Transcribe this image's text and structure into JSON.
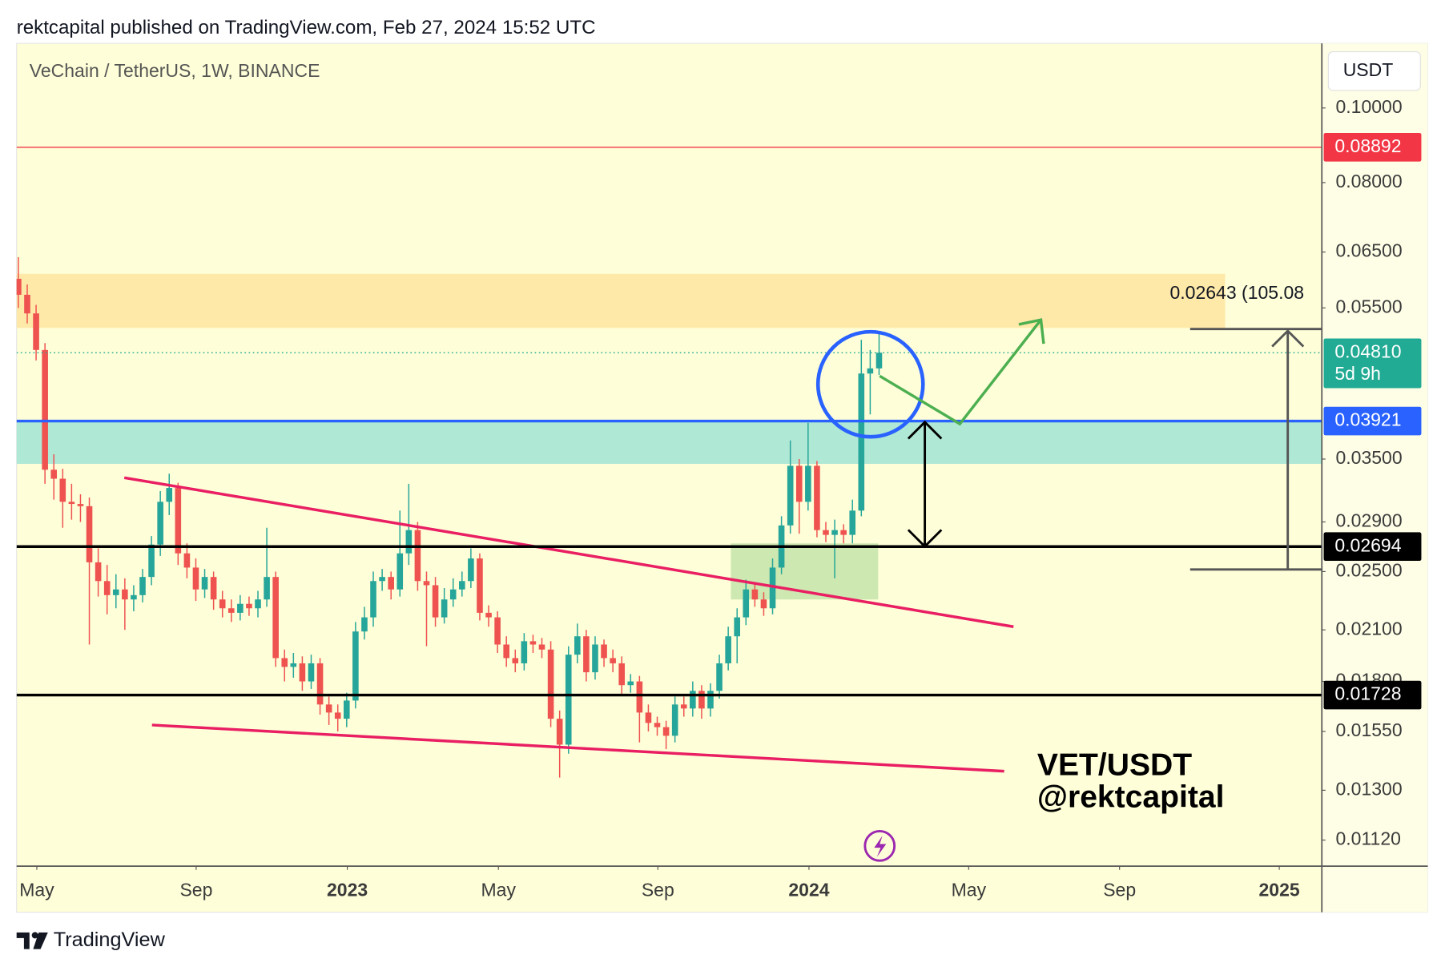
{
  "header": "rektcapital published on TradingView.com, Feb 27, 2024 15:52 UTC",
  "chart_data": {
    "type": "candlestick",
    "title": "VeChain / TetherUS, 1W, BINANCE",
    "currency": "USDT",
    "log_scale": true,
    "ylim": [
      0.01036,
      0.1213
    ],
    "yticks": [
      {
        "value": 0.1,
        "label": "0.10000"
      },
      {
        "value": 0.08,
        "label": "0.08000"
      },
      {
        "value": 0.065,
        "label": "0.06500"
      },
      {
        "value": 0.055,
        "label": "0.05500"
      },
      {
        "value": 0.035,
        "label": "0.03500"
      },
      {
        "value": 0.029,
        "label": "0.02900"
      },
      {
        "value": 0.025,
        "label": "0.02500"
      },
      {
        "value": 0.021,
        "label": "0.02100"
      },
      {
        "value": 0.018,
        "label": "0.01800"
      },
      {
        "value": 0.0155,
        "label": "0.01550"
      },
      {
        "value": 0.013,
        "label": "0.01300"
      },
      {
        "value": 0.0112,
        "label": "0.01120"
      }
    ],
    "xlim": [
      -0.2,
      146.9
    ],
    "xticks": [
      {
        "value": 2.08,
        "label": "May"
      },
      {
        "value": 20.04,
        "label": "Sep"
      },
      {
        "value": 37.07,
        "label": "2023"
      },
      {
        "value": 54.1,
        "label": "May"
      },
      {
        "value": 72.07,
        "label": "Sep"
      },
      {
        "value": 89.1,
        "label": "2024"
      },
      {
        "value": 107.1,
        "label": "May"
      },
      {
        "value": 124.1,
        "label": "Sep"
      },
      {
        "value": 142.1,
        "label": "2025"
      }
    ],
    "up_color": "#26a69a",
    "down_color": "#ef5350",
    "open": [
      0.06,
      0.0572,
      0.0541,
      0.0485,
      0.0339,
      0.033,
      0.0308,
      0.0306,
      0.0304,
      0.0257,
      0.0243,
      0.0233,
      0.0237,
      0.023,
      0.0233,
      0.0246,
      0.0271,
      0.0308,
      0.0321,
      0.0264,
      0.0253,
      0.0237,
      0.0246,
      0.023,
      0.0224,
      0.0221,
      0.0227,
      0.0224,
      0.023,
      0.0246,
      0.0193,
      0.0188,
      0.019,
      0.018,
      0.019,
      0.0168,
      0.0164,
      0.0161,
      0.017,
      0.0209,
      0.0218,
      0.0243,
      0.0246,
      0.0237,
      0.0264,
      0.0283,
      0.0243,
      0.024,
      0.0218,
      0.023,
      0.0237,
      0.0243,
      0.026,
      0.0221,
      0.0218,
      0.0201,
      0.0193,
      0.019,
      0.0203,
      0.0201,
      0.0198,
      0.0161,
      0.0149,
      0.0195,
      0.0206,
      0.0185,
      0.0201,
      0.0193,
      0.019,
      0.0178,
      0.018,
      0.0164,
      0.0159,
      0.0157,
      0.0153,
      0.0168,
      0.0166,
      0.0175,
      0.0166,
      0.0175,
      0.019,
      0.0206,
      0.0218,
      0.0237,
      0.023,
      0.0224,
      0.0253,
      0.0287,
      0.0343,
      0.0308,
      0.0343,
      0.0283,
      0.0279,
      0.0283,
      0.0279,
      0.03,
      0.0452,
      0.0459
    ],
    "high": [
      0.064,
      0.059,
      0.0555,
      0.0495,
      0.0355,
      0.034,
      0.0325,
      0.0315,
      0.0312,
      0.0268,
      0.0255,
      0.0248,
      0.0245,
      0.024,
      0.0252,
      0.0278,
      0.0318,
      0.0335,
      0.0326,
      0.0272,
      0.026,
      0.0252,
      0.025,
      0.0236,
      0.023,
      0.0233,
      0.0232,
      0.0236,
      0.0285,
      0.025,
      0.0198,
      0.0196,
      0.0194,
      0.0195,
      0.0193,
      0.0172,
      0.0168,
      0.0174,
      0.0215,
      0.0225,
      0.025,
      0.0252,
      0.025,
      0.03,
      0.0325,
      0.029,
      0.025,
      0.0246,
      0.0238,
      0.0245,
      0.025,
      0.0268,
      0.0264,
      0.0226,
      0.0222,
      0.0206,
      0.0198,
      0.0208,
      0.0207,
      0.0205,
      0.0203,
      0.0165,
      0.02,
      0.0214,
      0.021,
      0.0206,
      0.0204,
      0.0198,
      0.0194,
      0.0184,
      0.0183,
      0.0168,
      0.0162,
      0.016,
      0.0172,
      0.0172,
      0.018,
      0.0178,
      0.0179,
      0.0195,
      0.0212,
      0.0224,
      0.0244,
      0.0241,
      0.0235,
      0.026,
      0.0295,
      0.037,
      0.035,
      0.039,
      0.0348,
      0.029,
      0.0292,
      0.0288,
      0.031,
      0.05,
      0.0485,
      0.051
    ],
    "low": [
      0.055,
      0.0525,
      0.047,
      0.0325,
      0.031,
      0.0285,
      0.0292,
      0.029,
      0.0201,
      0.0232,
      0.022,
      0.0224,
      0.021,
      0.0222,
      0.0228,
      0.024,
      0.0262,
      0.0296,
      0.0255,
      0.0245,
      0.0229,
      0.0231,
      0.0223,
      0.0218,
      0.0215,
      0.0216,
      0.0219,
      0.0218,
      0.0225,
      0.0188,
      0.018,
      0.0182,
      0.0175,
      0.0176,
      0.0163,
      0.0158,
      0.0155,
      0.0157,
      0.0166,
      0.0204,
      0.0212,
      0.0236,
      0.023,
      0.0232,
      0.0255,
      0.0236,
      0.02,
      0.0212,
      0.0214,
      0.0225,
      0.0232,
      0.0238,
      0.0216,
      0.0212,
      0.0196,
      0.0188,
      0.0185,
      0.0186,
      0.0196,
      0.0193,
      0.0157,
      0.0135,
      0.0145,
      0.019,
      0.018,
      0.0181,
      0.0188,
      0.0185,
      0.0173,
      0.0174,
      0.015,
      0.0155,
      0.0153,
      0.0147,
      0.015,
      0.0162,
      0.0162,
      0.0161,
      0.0162,
      0.0171,
      0.0186,
      0.019,
      0.0213,
      0.0225,
      0.0219,
      0.022,
      0.0248,
      0.028,
      0.028,
      0.03,
      0.0277,
      0.0273,
      0.0245,
      0.0272,
      0.0272,
      0.0295,
      0.04,
      0.045
    ],
    "close": [
      0.0572,
      0.0541,
      0.0485,
      0.0339,
      0.033,
      0.0308,
      0.0306,
      0.0304,
      0.0257,
      0.0243,
      0.0233,
      0.0237,
      0.023,
      0.0233,
      0.0246,
      0.0271,
      0.0308,
      0.0321,
      0.0264,
      0.0253,
      0.0237,
      0.0246,
      0.023,
      0.0224,
      0.0221,
      0.0227,
      0.0224,
      0.023,
      0.0246,
      0.0193,
      0.0188,
      0.019,
      0.018,
      0.019,
      0.0168,
      0.0164,
      0.0161,
      0.017,
      0.0209,
      0.0218,
      0.0243,
      0.0246,
      0.0237,
      0.0264,
      0.0283,
      0.0243,
      0.024,
      0.0218,
      0.023,
      0.0237,
      0.0243,
      0.026,
      0.0221,
      0.0218,
      0.0201,
      0.0193,
      0.019,
      0.0203,
      0.0201,
      0.0198,
      0.0161,
      0.0149,
      0.0195,
      0.0206,
      0.0185,
      0.0201,
      0.0193,
      0.019,
      0.0178,
      0.018,
      0.0164,
      0.0159,
      0.0157,
      0.0153,
      0.0168,
      0.0166,
      0.0175,
      0.0166,
      0.0175,
      0.019,
      0.0206,
      0.0218,
      0.0237,
      0.023,
      0.0224,
      0.0253,
      0.0287,
      0.0343,
      0.0308,
      0.0343,
      0.0283,
      0.0279,
      0.0283,
      0.0279,
      0.03,
      0.0452,
      0.0459,
      0.0481
    ],
    "zones": [
      {
        "from": 0.0518,
        "to": 0.0609,
        "x": [
          -0.2,
          136.0
        ],
        "color": "#ffe9a8"
      },
      {
        "from": 0.0345,
        "to": 0.0393,
        "color": "#b0e8d6"
      },
      {
        "from": 0.023,
        "to": 0.0272,
        "x": [
          80.3,
          96.9
        ],
        "color": "#cde8b0"
      }
    ],
    "trendlines": [
      {
        "x": [
          11.94,
          112.15
        ],
        "y": [
          0.0331,
          0.0212
        ],
        "color": "#e91e63"
      },
      {
        "x": [
          15.06,
          111.1
        ],
        "y": [
          0.0158,
          0.01376
        ],
        "color": "#e91e63"
      }
    ],
    "price_lines": [
      {
        "price": 0.08892,
        "color": "#f23645",
        "style": "thin"
      },
      {
        "price": {
          "value": 0.0481,
          "label": "0.04810"
        },
        "color": "#22ab94",
        "style": "dotted",
        "countdown": "5d 9h"
      },
      {
        "price": 0.03921,
        "color": "#2962ff",
        "style": "thick"
      },
      {
        "price": 0.02694,
        "color": "#000000",
        "style": "thick"
      },
      {
        "price": 0.01728,
        "color": "#000000",
        "style": "thick"
      }
    ],
    "measure_label": "0.02643 (105.08",
    "watermark": [
      "VET/USDT",
      "@rektcapital"
    ]
  },
  "footer": "TradingView"
}
